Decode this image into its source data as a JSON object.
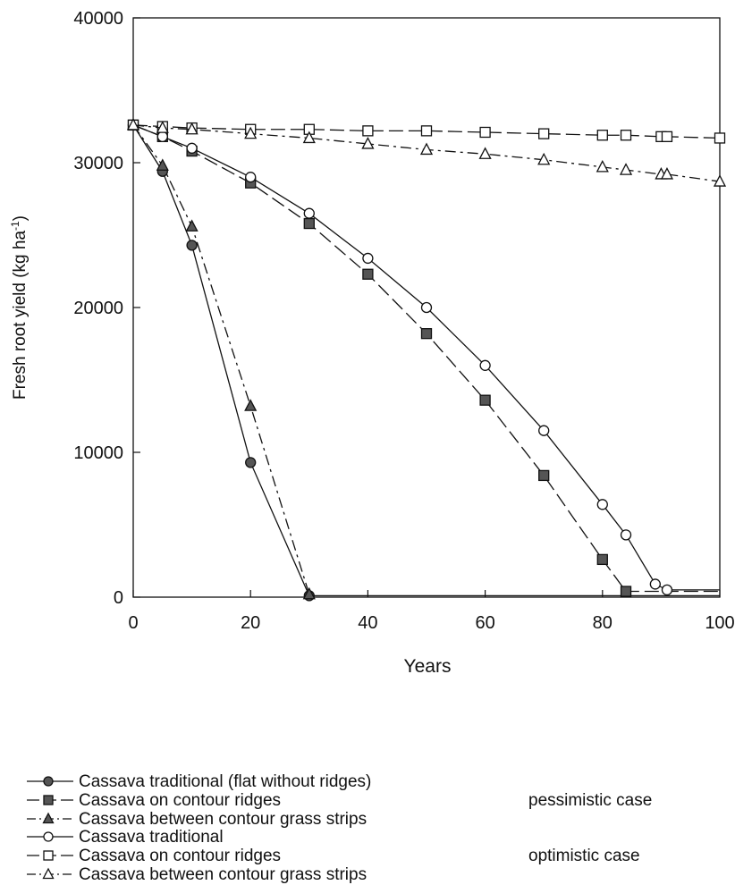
{
  "chart_data": {
    "type": "line",
    "title": "",
    "xlabel": "Years",
    "ylabel": "Fresh root yield (kg ha-1)",
    "ylabel_parts": {
      "main": "Fresh root yield (kg ha",
      "sup": "-1",
      "close": ")"
    },
    "xlim": [
      0,
      100
    ],
    "ylim": [
      0,
      40000
    ],
    "xticks": [
      "0",
      "20",
      "40",
      "60",
      "80",
      "100"
    ],
    "yticks": [
      "0",
      "10000",
      "20000",
      "30000",
      "40000"
    ],
    "grid": false,
    "legend_position": "below",
    "series": [
      {
        "name": "Cassava traditional (flat without ridges)",
        "marker": "circle",
        "fill": "filled",
        "dash": "solid",
        "x": [
          0,
          5,
          10,
          20,
          30,
          100
        ],
        "y": [
          32600,
          29400,
          24300,
          9300,
          100,
          100
        ]
      },
      {
        "name": "Cassava on contour ridges",
        "marker": "square",
        "fill": "filled",
        "dash": "long-dash",
        "x": [
          0,
          5,
          10,
          20,
          30,
          40,
          50,
          60,
          70,
          80,
          84,
          100
        ],
        "y": [
          32600,
          31800,
          30800,
          28600,
          25800,
          22300,
          18200,
          13600,
          8400,
          2600,
          400,
          400
        ]
      },
      {
        "name": "Cassava between contour grass strips",
        "marker": "triangle",
        "fill": "filled",
        "dash": "dash-dot",
        "x": [
          0,
          5,
          10,
          20,
          30
        ],
        "y": [
          32600,
          29800,
          25600,
          13200,
          200
        ]
      },
      {
        "name": "Cassava traditional",
        "marker": "circle",
        "fill": "open",
        "dash": "solid",
        "x": [
          0,
          5,
          10,
          20,
          30,
          40,
          50,
          60,
          70,
          80,
          84,
          89,
          91,
          100
        ],
        "y": [
          32600,
          31800,
          31000,
          29000,
          26500,
          23400,
          20000,
          16000,
          11500,
          6400,
          4300,
          900,
          500,
          500
        ]
      },
      {
        "name": "Cassava on contour ridges",
        "marker": "square",
        "fill": "open",
        "dash": "long-dash",
        "x": [
          0,
          5,
          10,
          20,
          30,
          40,
          50,
          60,
          70,
          80,
          84,
          90,
          91,
          100
        ],
        "y": [
          32600,
          32500,
          32400,
          32300,
          32300,
          32200,
          32200,
          32100,
          32000,
          31900,
          31900,
          31800,
          31800,
          31700
        ]
      },
      {
        "name": "Cassava between contour grass strips",
        "marker": "triangle",
        "fill": "open",
        "dash": "dash-dot",
        "x": [
          0,
          5,
          10,
          20,
          30,
          40,
          50,
          60,
          70,
          80,
          84,
          90,
          91,
          100
        ],
        "y": [
          32600,
          32400,
          32300,
          32000,
          31700,
          31300,
          30900,
          30600,
          30200,
          29700,
          29500,
          29200,
          29200,
          28700
        ]
      }
    ],
    "legend_groups": [
      "pessimistic case",
      "optimistic case"
    ]
  }
}
